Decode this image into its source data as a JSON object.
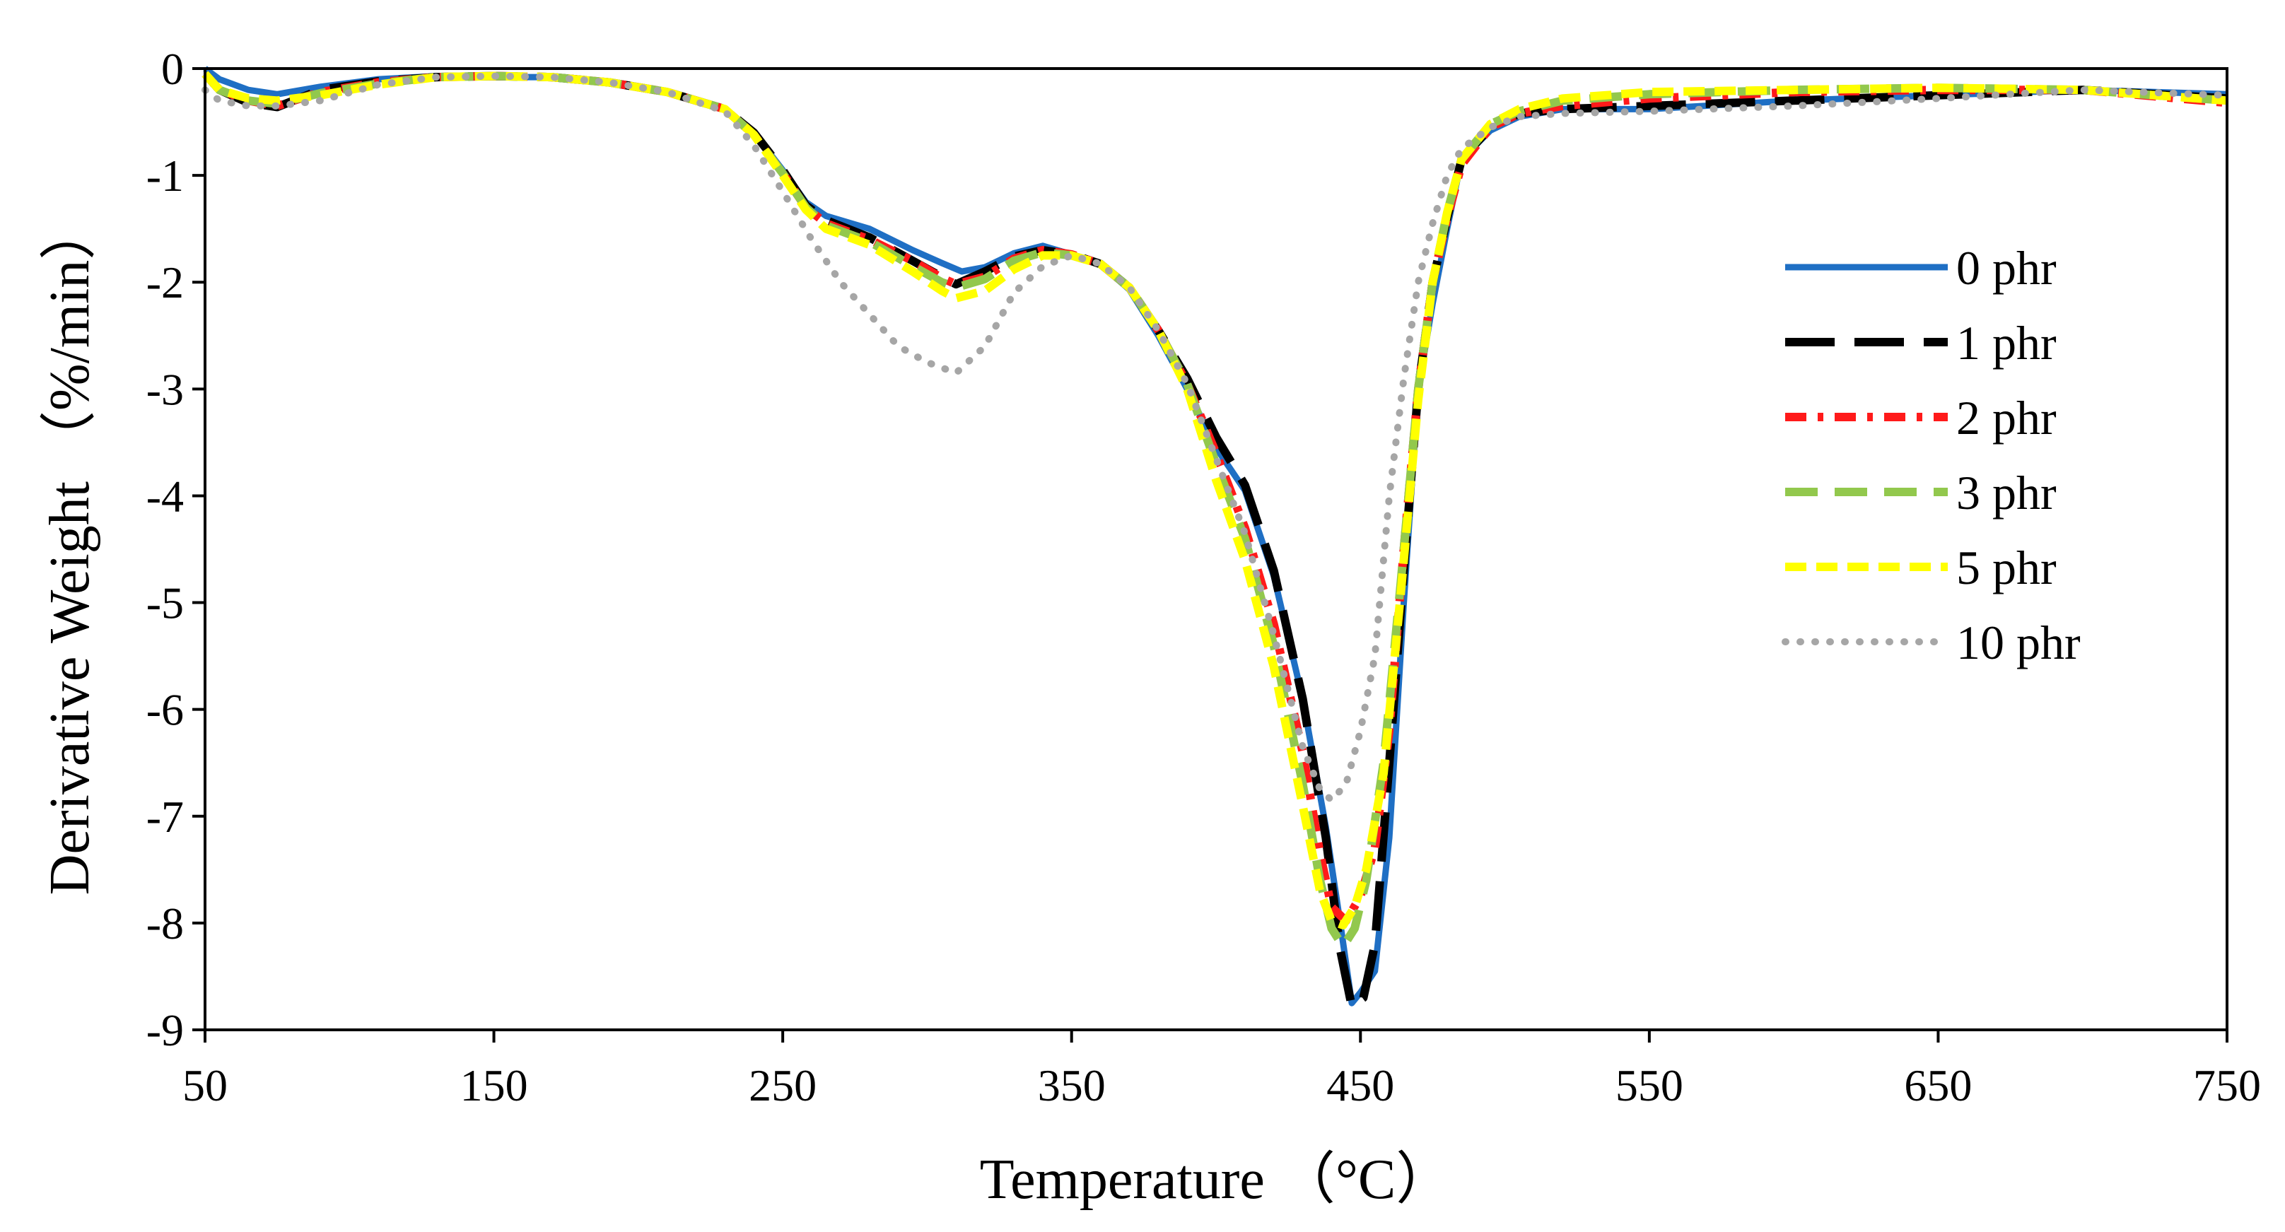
{
  "chart_data": {
    "type": "line",
    "title": "",
    "xlabel": "Temperature （°C）",
    "ylabel": "Derivative Weight （%/min）",
    "xlim": [
      50,
      750
    ],
    "ylim": [
      -9,
      0
    ],
    "xticks": [
      50,
      150,
      250,
      350,
      450,
      550,
      650,
      750
    ],
    "yticks": [
      0,
      -1,
      -2,
      -3,
      -4,
      -5,
      -6,
      -7,
      -8,
      -9
    ],
    "xtick_labels": [
      "50",
      "150",
      "250",
      "350",
      "450",
      "550",
      "650",
      "750"
    ],
    "ytick_labels": [
      "0",
      "-1",
      "-2",
      "-3",
      "-4",
      "-5",
      "-6",
      "-7",
      "-8",
      "-9"
    ],
    "grid": false,
    "legend_position": "right",
    "series": [
      {
        "name": "0 phr",
        "color": "#1f6fc4",
        "style": "solid",
        "points": [
          [
            50,
            0
          ],
          [
            55,
            -0.1
          ],
          [
            65,
            -0.2
          ],
          [
            75,
            -0.24
          ],
          [
            90,
            -0.17
          ],
          [
            110,
            -0.1
          ],
          [
            130,
            -0.07
          ],
          [
            150,
            -0.08
          ],
          [
            170,
            -0.08
          ],
          [
            190,
            -0.13
          ],
          [
            210,
            -0.22
          ],
          [
            230,
            -0.38
          ],
          [
            240,
            -0.6
          ],
          [
            250,
            -0.95
          ],
          [
            258,
            -1.25
          ],
          [
            265,
            -1.38
          ],
          [
            280,
            -1.5
          ],
          [
            295,
            -1.7
          ],
          [
            305,
            -1.82
          ],
          [
            312,
            -1.9
          ],
          [
            320,
            -1.86
          ],
          [
            330,
            -1.73
          ],
          [
            340,
            -1.66
          ],
          [
            350,
            -1.74
          ],
          [
            360,
            -1.83
          ],
          [
            370,
            -2.07
          ],
          [
            380,
            -2.5
          ],
          [
            390,
            -3.0
          ],
          [
            400,
            -3.55
          ],
          [
            410,
            -3.95
          ],
          [
            420,
            -4.75
          ],
          [
            430,
            -5.9
          ],
          [
            438,
            -7.1
          ],
          [
            443,
            -8.0
          ],
          [
            447,
            -8.75
          ],
          [
            450,
            -8.65
          ],
          [
            455,
            -8.45
          ],
          [
            460,
            -7.2
          ],
          [
            465,
            -5.0
          ],
          [
            470,
            -3.0
          ],
          [
            475,
            -2.2
          ],
          [
            480,
            -1.5
          ],
          [
            485,
            -0.85
          ],
          [
            495,
            -0.58
          ],
          [
            505,
            -0.45
          ],
          [
            520,
            -0.38
          ],
          [
            550,
            -0.38
          ],
          [
            600,
            -0.3
          ],
          [
            650,
            -0.25
          ],
          [
            700,
            -0.2
          ],
          [
            750,
            -0.24
          ]
        ]
      },
      {
        "name": "1 phr",
        "color": "#000000",
        "style": "longdash",
        "points": [
          [
            50,
            -0.05
          ],
          [
            55,
            -0.2
          ],
          [
            65,
            -0.32
          ],
          [
            75,
            -0.36
          ],
          [
            90,
            -0.2
          ],
          [
            110,
            -0.12
          ],
          [
            130,
            -0.08
          ],
          [
            150,
            -0.07
          ],
          [
            170,
            -0.08
          ],
          [
            190,
            -0.13
          ],
          [
            210,
            -0.22
          ],
          [
            230,
            -0.38
          ],
          [
            240,
            -0.6
          ],
          [
            250,
            -0.95
          ],
          [
            258,
            -1.28
          ],
          [
            265,
            -1.42
          ],
          [
            280,
            -1.58
          ],
          [
            295,
            -1.8
          ],
          [
            305,
            -1.95
          ],
          [
            310,
            -2.02
          ],
          [
            320,
            -1.9
          ],
          [
            330,
            -1.76
          ],
          [
            340,
            -1.7
          ],
          [
            350,
            -1.74
          ],
          [
            360,
            -1.83
          ],
          [
            370,
            -2.05
          ],
          [
            380,
            -2.45
          ],
          [
            390,
            -2.9
          ],
          [
            400,
            -3.45
          ],
          [
            410,
            -3.9
          ],
          [
            420,
            -4.7
          ],
          [
            430,
            -5.9
          ],
          [
            438,
            -7.2
          ],
          [
            443,
            -8.25
          ],
          [
            447,
            -8.78
          ],
          [
            451,
            -8.7
          ],
          [
            455,
            -8.2
          ],
          [
            460,
            -6.5
          ],
          [
            465,
            -4.7
          ],
          [
            470,
            -3.0
          ],
          [
            475,
            -2.0
          ],
          [
            480,
            -1.4
          ],
          [
            485,
            -0.85
          ],
          [
            495,
            -0.55
          ],
          [
            505,
            -0.42
          ],
          [
            520,
            -0.38
          ],
          [
            550,
            -0.35
          ],
          [
            600,
            -0.3
          ],
          [
            650,
            -0.25
          ],
          [
            700,
            -0.2
          ],
          [
            750,
            -0.28
          ]
        ]
      },
      {
        "name": "2 phr",
        "color": "#ff1a1a",
        "style": "dashdot",
        "points": [
          [
            50,
            -0.05
          ],
          [
            55,
            -0.2
          ],
          [
            65,
            -0.3
          ],
          [
            75,
            -0.35
          ],
          [
            90,
            -0.22
          ],
          [
            110,
            -0.13
          ],
          [
            130,
            -0.08
          ],
          [
            150,
            -0.07
          ],
          [
            170,
            -0.08
          ],
          [
            190,
            -0.13
          ],
          [
            210,
            -0.22
          ],
          [
            230,
            -0.38
          ],
          [
            240,
            -0.62
          ],
          [
            250,
            -0.98
          ],
          [
            258,
            -1.3
          ],
          [
            265,
            -1.45
          ],
          [
            280,
            -1.6
          ],
          [
            295,
            -1.8
          ],
          [
            305,
            -1.96
          ],
          [
            310,
            -2.02
          ],
          [
            320,
            -1.95
          ],
          [
            330,
            -1.78
          ],
          [
            340,
            -1.7
          ],
          [
            350,
            -1.74
          ],
          [
            360,
            -1.83
          ],
          [
            370,
            -2.05
          ],
          [
            380,
            -2.45
          ],
          [
            390,
            -2.95
          ],
          [
            400,
            -3.6
          ],
          [
            410,
            -4.3
          ],
          [
            420,
            -5.2
          ],
          [
            430,
            -6.4
          ],
          [
            436,
            -7.35
          ],
          [
            440,
            -7.85
          ],
          [
            445,
            -7.98
          ],
          [
            450,
            -7.75
          ],
          [
            455,
            -7.3
          ],
          [
            460,
            -6.2
          ],
          [
            465,
            -4.5
          ],
          [
            470,
            -3.0
          ],
          [
            475,
            -2.0
          ],
          [
            480,
            -1.4
          ],
          [
            485,
            -0.9
          ],
          [
            495,
            -0.55
          ],
          [
            505,
            -0.42
          ],
          [
            520,
            -0.35
          ],
          [
            550,
            -0.28
          ],
          [
            600,
            -0.22
          ],
          [
            650,
            -0.2
          ],
          [
            700,
            -0.2
          ],
          [
            750,
            -0.32
          ]
        ]
      },
      {
        "name": "3 phr",
        "color": "#92c84d",
        "style": "dash",
        "points": [
          [
            50,
            -0.05
          ],
          [
            55,
            -0.2
          ],
          [
            65,
            -0.3
          ],
          [
            75,
            -0.33
          ],
          [
            90,
            -0.23
          ],
          [
            110,
            -0.14
          ],
          [
            130,
            -0.08
          ],
          [
            150,
            -0.07
          ],
          [
            170,
            -0.08
          ],
          [
            190,
            -0.13
          ],
          [
            210,
            -0.22
          ],
          [
            230,
            -0.38
          ],
          [
            240,
            -0.62
          ],
          [
            250,
            -0.98
          ],
          [
            258,
            -1.3
          ],
          [
            265,
            -1.47
          ],
          [
            280,
            -1.62
          ],
          [
            295,
            -1.85
          ],
          [
            305,
            -2.0
          ],
          [
            310,
            -2.05
          ],
          [
            320,
            -1.97
          ],
          [
            330,
            -1.8
          ],
          [
            340,
            -1.72
          ],
          [
            350,
            -1.75
          ],
          [
            360,
            -1.83
          ],
          [
            370,
            -2.05
          ],
          [
            380,
            -2.45
          ],
          [
            390,
            -2.95
          ],
          [
            400,
            -3.7
          ],
          [
            410,
            -4.4
          ],
          [
            420,
            -5.4
          ],
          [
            430,
            -6.7
          ],
          [
            436,
            -7.6
          ],
          [
            440,
            -8.05
          ],
          [
            444,
            -8.22
          ],
          [
            448,
            -8.05
          ],
          [
            452,
            -7.6
          ],
          [
            458,
            -6.5
          ],
          [
            464,
            -4.8
          ],
          [
            470,
            -3.0
          ],
          [
            475,
            -2.0
          ],
          [
            480,
            -1.35
          ],
          [
            485,
            -0.85
          ],
          [
            495,
            -0.52
          ],
          [
            505,
            -0.4
          ],
          [
            520,
            -0.3
          ],
          [
            550,
            -0.24
          ],
          [
            600,
            -0.2
          ],
          [
            650,
            -0.18
          ],
          [
            700,
            -0.2
          ],
          [
            750,
            -0.3
          ]
        ]
      },
      {
        "name": "5 phr",
        "color": "#ffff00",
        "style": "shortdash",
        "points": [
          [
            50,
            -0.05
          ],
          [
            55,
            -0.2
          ],
          [
            65,
            -0.28
          ],
          [
            75,
            -0.3
          ],
          [
            90,
            -0.25
          ],
          [
            110,
            -0.15
          ],
          [
            130,
            -0.08
          ],
          [
            150,
            -0.07
          ],
          [
            170,
            -0.08
          ],
          [
            190,
            -0.13
          ],
          [
            210,
            -0.22
          ],
          [
            230,
            -0.38
          ],
          [
            240,
            -0.62
          ],
          [
            250,
            -1.0
          ],
          [
            258,
            -1.32
          ],
          [
            265,
            -1.5
          ],
          [
            280,
            -1.65
          ],
          [
            295,
            -1.9
          ],
          [
            305,
            -2.08
          ],
          [
            310,
            -2.15
          ],
          [
            320,
            -2.08
          ],
          [
            330,
            -1.88
          ],
          [
            340,
            -1.75
          ],
          [
            350,
            -1.75
          ],
          [
            360,
            -1.83
          ],
          [
            370,
            -2.05
          ],
          [
            380,
            -2.45
          ],
          [
            390,
            -3.0
          ],
          [
            400,
            -3.85
          ],
          [
            410,
            -4.6
          ],
          [
            420,
            -5.6
          ],
          [
            430,
            -6.9
          ],
          [
            436,
            -7.7
          ],
          [
            440,
            -7.98
          ],
          [
            444,
            -8.02
          ],
          [
            448,
            -7.85
          ],
          [
            452,
            -7.5
          ],
          [
            458,
            -6.6
          ],
          [
            464,
            -4.9
          ],
          [
            470,
            -3.1
          ],
          [
            475,
            -2.0
          ],
          [
            480,
            -1.35
          ],
          [
            485,
            -0.85
          ],
          [
            495,
            -0.52
          ],
          [
            505,
            -0.38
          ],
          [
            520,
            -0.28
          ],
          [
            550,
            -0.22
          ],
          [
            600,
            -0.2
          ],
          [
            650,
            -0.18
          ],
          [
            700,
            -0.2
          ],
          [
            750,
            -0.3
          ]
        ]
      },
      {
        "name": "10 phr",
        "color": "#a6a6a6",
        "style": "dotted",
        "points": [
          [
            50,
            -0.2
          ],
          [
            55,
            -0.3
          ],
          [
            65,
            -0.35
          ],
          [
            75,
            -0.35
          ],
          [
            90,
            -0.3
          ],
          [
            110,
            -0.15
          ],
          [
            130,
            -0.08
          ],
          [
            150,
            -0.07
          ],
          [
            170,
            -0.08
          ],
          [
            190,
            -0.13
          ],
          [
            210,
            -0.22
          ],
          [
            230,
            -0.4
          ],
          [
            240,
            -0.72
          ],
          [
            250,
            -1.15
          ],
          [
            260,
            -1.6
          ],
          [
            270,
            -2.0
          ],
          [
            280,
            -2.3
          ],
          [
            290,
            -2.6
          ],
          [
            300,
            -2.75
          ],
          [
            310,
            -2.85
          ],
          [
            320,
            -2.6
          ],
          [
            330,
            -2.1
          ],
          [
            340,
            -1.85
          ],
          [
            350,
            -1.75
          ],
          [
            360,
            -1.83
          ],
          [
            370,
            -2.05
          ],
          [
            380,
            -2.45
          ],
          [
            390,
            -2.95
          ],
          [
            400,
            -3.65
          ],
          [
            410,
            -4.35
          ],
          [
            420,
            -5.3
          ],
          [
            430,
            -6.35
          ],
          [
            436,
            -6.75
          ],
          [
            440,
            -6.85
          ],
          [
            445,
            -6.7
          ],
          [
            450,
            -6.2
          ],
          [
            455,
            -5.5
          ],
          [
            460,
            -4.0
          ],
          [
            465,
            -2.9
          ],
          [
            470,
            -2.0
          ],
          [
            475,
            -1.45
          ],
          [
            480,
            -1.0
          ],
          [
            485,
            -0.75
          ],
          [
            495,
            -0.55
          ],
          [
            505,
            -0.45
          ],
          [
            520,
            -0.42
          ],
          [
            550,
            -0.4
          ],
          [
            600,
            -0.35
          ],
          [
            650,
            -0.28
          ],
          [
            700,
            -0.2
          ],
          [
            750,
            -0.25
          ]
        ]
      }
    ]
  }
}
